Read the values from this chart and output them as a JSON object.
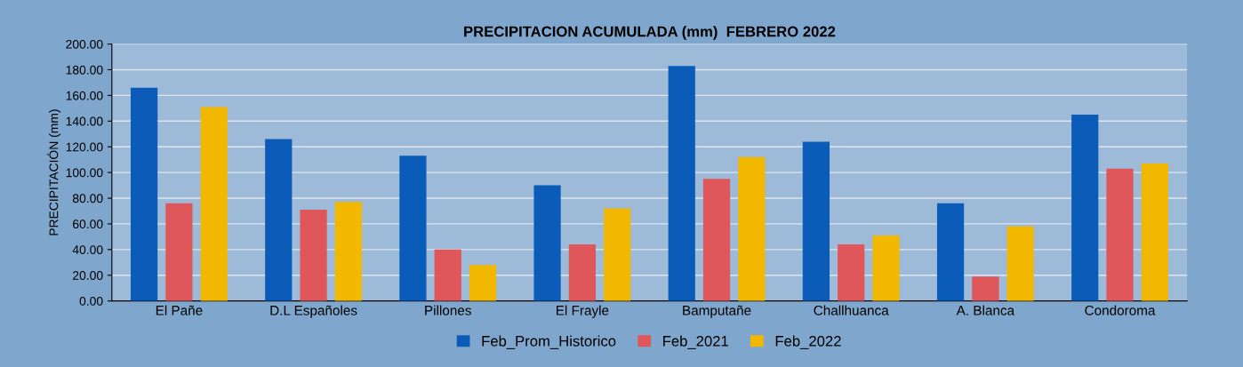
{
  "chart_data": {
    "type": "bar",
    "title": "PRECIPITACION ACUMULADA (mm)  FEBRERO 2022",
    "ylabel": "PRECIPITACIÓN (mm)",
    "categories": [
      "El Pañe",
      "D.L Españoles",
      "Pillones",
      "El Frayle",
      "Bamputañe",
      "Challhuanca",
      "A. Blanca",
      "Condoroma"
    ],
    "series": [
      {
        "name": "Feb_Prom_Historico",
        "color": "#0a5cb8",
        "values": [
          166,
          126,
          113,
          90,
          183,
          124,
          76,
          145
        ]
      },
      {
        "name": "Feb_2021",
        "color": "#e0575b",
        "values": [
          76,
          71,
          40,
          44,
          95,
          44,
          19,
          103
        ]
      },
      {
        "name": "Feb_2022",
        "color": "#f2b800",
        "values": [
          151,
          77,
          28,
          72,
          112,
          51,
          58,
          107
        ]
      }
    ],
    "ylim": [
      0,
      200
    ],
    "yticks": [
      {
        "value": 0,
        "label": "0.00"
      },
      {
        "value": 20,
        "label": "20.00"
      },
      {
        "value": 40,
        "label": "40.00"
      },
      {
        "value": 60,
        "label": "60.00"
      },
      {
        "value": 80,
        "label": "80.00"
      },
      {
        "value": 100,
        "label": "100.00"
      },
      {
        "value": 120,
        "label": "120.00"
      },
      {
        "value": 140,
        "label": "140.00"
      },
      {
        "value": 160,
        "label": "160.00"
      },
      {
        "value": 180,
        "label": "180.00"
      },
      {
        "value": 200,
        "label": "200.00"
      }
    ],
    "grid": "y",
    "legend": "bottom"
  }
}
